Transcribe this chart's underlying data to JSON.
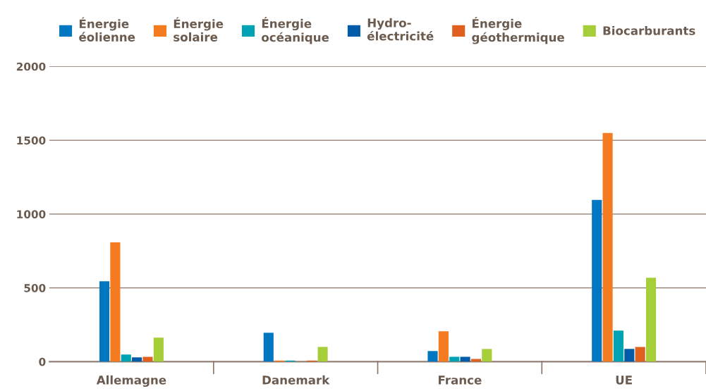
{
  "chart_data": {
    "type": "bar",
    "categories": [
      "Allemagne",
      "Danemark",
      "France",
      "UE"
    ],
    "series": [
      {
        "name": "Énergie\néolienne",
        "color": "#0077c0",
        "values": [
          545,
          196,
          72,
          1096
        ]
      },
      {
        "name": "Énergie\nsolaire",
        "color": "#f47b20",
        "values": [
          809,
          8,
          206,
          1550
        ]
      },
      {
        "name": "Énergie\nocéanique",
        "color": "#00a3b4",
        "values": [
          48,
          8,
          33,
          211
        ]
      },
      {
        "name": "Hydro-\nélectricité",
        "color": "#005ca8",
        "values": [
          29,
          0,
          33,
          86
        ]
      },
      {
        "name": "Énergie\ngéothermique",
        "color": "#e0601f",
        "values": [
          33,
          8,
          19,
          100
        ]
      },
      {
        "name": "Biocarburants",
        "color": "#a6ce39",
        "values": [
          163,
          100,
          86,
          569
        ]
      }
    ],
    "ylim": [
      0,
      2000
    ],
    "yticks": [
      0,
      500,
      1000,
      1500,
      2000
    ],
    "grid": "y",
    "legend": "top"
  }
}
